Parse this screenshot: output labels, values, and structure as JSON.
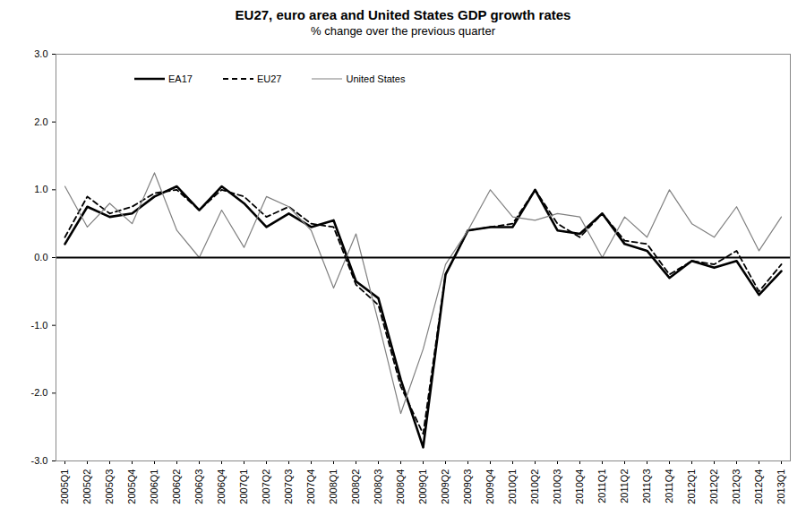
{
  "chart_data": {
    "type": "line",
    "title": "EU27, euro area and United States GDP growth rates",
    "subtitle": "% change over the previous quarter",
    "categories": [
      "2005Q1",
      "2005Q2",
      "2005Q3",
      "2005Q4",
      "2006Q1",
      "2006Q2",
      "2006Q3",
      "2006Q4",
      "2007Q1",
      "2007Q2",
      "2007Q3",
      "2007Q4",
      "2008Q1",
      "2008Q2",
      "2008Q3",
      "2008Q4",
      "2009Q1",
      "2009Q2",
      "2009Q3",
      "2009Q4",
      "2010Q1",
      "2010Q2",
      "2010Q3",
      "2010Q4",
      "2011Q1",
      "2011Q2",
      "2011Q3",
      "2011Q4",
      "2012Q1",
      "2012Q2",
      "2012Q3",
      "2012Q4",
      "2013Q1"
    ],
    "series": [
      {
        "name": "EA17",
        "color": "#000000",
        "line_style": "solid",
        "values": [
          0.2,
          0.75,
          0.6,
          0.65,
          0.9,
          1.05,
          0.7,
          1.05,
          0.8,
          0.45,
          0.65,
          0.45,
          0.55,
          -0.35,
          -0.6,
          -1.8,
          -2.8,
          -0.25,
          0.4,
          0.45,
          0.45,
          1.0,
          0.4,
          0.35,
          0.65,
          0.2,
          0.1,
          -0.3,
          -0.05,
          -0.15,
          -0.05,
          -0.55,
          -0.2
        ]
      },
      {
        "name": "EU27",
        "color": "#000000",
        "line_style": "dashed",
        "values": [
          0.3,
          0.9,
          0.65,
          0.75,
          0.95,
          1.0,
          0.7,
          1.0,
          0.9,
          0.6,
          0.75,
          0.5,
          0.45,
          -0.4,
          -0.7,
          -1.9,
          -2.6,
          -0.25,
          0.4,
          0.45,
          0.5,
          1.0,
          0.5,
          0.3,
          0.65,
          0.25,
          0.2,
          -0.25,
          -0.05,
          -0.1,
          0.1,
          -0.5,
          -0.1
        ]
      },
      {
        "name": "United States",
        "color": "#808080",
        "line_style": "solid",
        "values": [
          1.05,
          0.45,
          0.8,
          0.5,
          1.25,
          0.4,
          0.0,
          0.7,
          0.15,
          0.9,
          0.75,
          0.4,
          -0.45,
          0.35,
          -0.95,
          -2.3,
          -1.35,
          -0.1,
          0.4,
          1.0,
          0.6,
          0.55,
          0.65,
          0.6,
          0.0,
          0.6,
          0.3,
          1.0,
          0.5,
          0.3,
          0.75,
          0.1,
          0.6
        ]
      }
    ],
    "ylim": [
      -3,
      3
    ],
    "yticks": [
      {
        "value": -3,
        "label": "-3.0"
      },
      {
        "value": -2,
        "label": "-2.0"
      },
      {
        "value": -1,
        "label": "-1.0"
      },
      {
        "value": 0,
        "label": "0.0"
      },
      {
        "value": 1,
        "label": "1.0"
      },
      {
        "value": 2,
        "label": "2.0"
      },
      {
        "value": 3,
        "label": "3.0"
      }
    ],
    "grid": false,
    "legend": "top-left"
  }
}
